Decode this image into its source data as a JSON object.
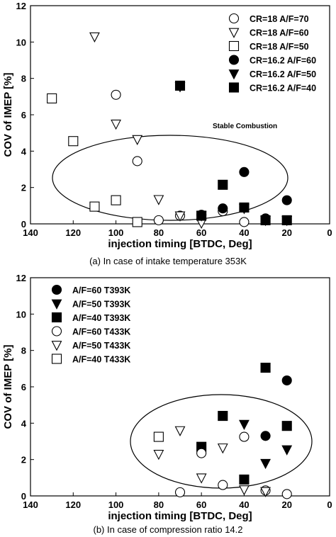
{
  "chart_data": [
    {
      "type": "scatter",
      "title": "",
      "caption": "(a) In case of intake temperature 353K",
      "xlabel": "injection timing [BTDC, Deg]",
      "ylabel": "COV of IMEP [%]",
      "xlim": [
        140,
        0
      ],
      "ylim": [
        0,
        12
      ],
      "x_ticks": [
        140,
        120,
        100,
        80,
        60,
        40,
        20,
        0
      ],
      "y_ticks": [
        0,
        2,
        4,
        6,
        8,
        10,
        12
      ],
      "legend_position": "top-right",
      "annotation": "Stable Combustion",
      "series": [
        {
          "name": "CR=18 A/F=70",
          "marker": "circle-open",
          "points": [
            [
              100,
              7.1
            ],
            [
              90,
              3.45
            ],
            [
              80,
              0.2
            ],
            [
              70,
              0.45
            ],
            [
              50,
              0.7
            ],
            [
              40,
              0.1
            ]
          ]
        },
        {
          "name": "CR=18 A/F=60",
          "marker": "triangle-open",
          "points": [
            [
              110,
              10.3
            ],
            [
              100,
              5.5
            ],
            [
              90,
              4.65
            ],
            [
              80,
              1.35
            ],
            [
              70,
              0.45
            ],
            [
              60,
              0.05
            ]
          ]
        },
        {
          "name": "CR=18 A/F=50",
          "marker": "square-open",
          "points": [
            [
              130,
              6.9
            ],
            [
              120,
              4.55
            ],
            [
              110,
              0.95
            ],
            [
              100,
              1.3
            ],
            [
              90,
              0.1
            ]
          ]
        },
        {
          "name": "CR=16.2 A/F=60",
          "marker": "circle-filled",
          "points": [
            [
              60,
              0.5
            ],
            [
              50,
              0.85
            ],
            [
              40,
              2.85
            ],
            [
              30,
              0.3
            ],
            [
              20,
              1.3
            ]
          ]
        },
        {
          "name": "CR=16.2 A/F=50",
          "marker": "triangle-filled",
          "points": [
            [
              70,
              7.55
            ],
            [
              60,
              0.45
            ],
            [
              40,
              0.85
            ],
            [
              30,
              0.2
            ],
            [
              20,
              0.2
            ]
          ]
        },
        {
          "name": "CR=16.2 A/F=40",
          "marker": "square-filled",
          "points": [
            [
              70,
              7.6
            ],
            [
              60,
              0.45
            ],
            [
              50,
              2.15
            ],
            [
              40,
              0.9
            ],
            [
              30,
              0.2
            ],
            [
              20,
              0.2
            ]
          ]
        }
      ]
    },
    {
      "type": "scatter",
      "title": "",
      "caption": "(b) In case of compression ratio 14.2",
      "xlabel": "injection timing [BTDC, Deg]",
      "ylabel": "COV of IMEP [%]",
      "xlim": [
        140,
        0
      ],
      "ylim": [
        0,
        12
      ],
      "x_ticks": [
        140,
        120,
        100,
        80,
        60,
        40,
        20,
        0
      ],
      "y_ticks": [
        0,
        2,
        4,
        6,
        8,
        10,
        12
      ],
      "legend_position": "top-left",
      "annotation": "",
      "series": [
        {
          "name": "A/F=60 T393K",
          "marker": "circle-filled",
          "points": [
            [
              30,
              3.3
            ],
            [
              20,
              6.35
            ]
          ]
        },
        {
          "name": "A/F=50 T393K",
          "marker": "triangle-filled",
          "points": [
            [
              40,
              3.95
            ],
            [
              30,
              1.8
            ],
            [
              20,
              2.55
            ]
          ]
        },
        {
          "name": "A/F=40 T393K",
          "marker": "square-filled",
          "points": [
            [
              60,
              2.7
            ],
            [
              50,
              4.4
            ],
            [
              40,
              0.9
            ],
            [
              30,
              7.05
            ],
            [
              20,
              3.85
            ]
          ]
        },
        {
          "name": "A/F=60 T433K",
          "marker": "circle-open",
          "points": [
            [
              70,
              0.2
            ],
            [
              60,
              2.35
            ],
            [
              50,
              0.6
            ],
            [
              40,
              3.25
            ],
            [
              30,
              0.3
            ],
            [
              20,
              0.1
            ]
          ]
        },
        {
          "name": "A/F=50 T433K",
          "marker": "triangle-open",
          "points": [
            [
              80,
              2.3
            ],
            [
              70,
              3.6
            ],
            [
              60,
              1.0
            ],
            [
              50,
              2.65
            ],
            [
              40,
              0.35
            ],
            [
              30,
              0.25
            ]
          ]
        },
        {
          "name": "A/F=40 T433K",
          "marker": "square-open",
          "points": [
            [
              80,
              3.25
            ]
          ]
        }
      ]
    }
  ]
}
